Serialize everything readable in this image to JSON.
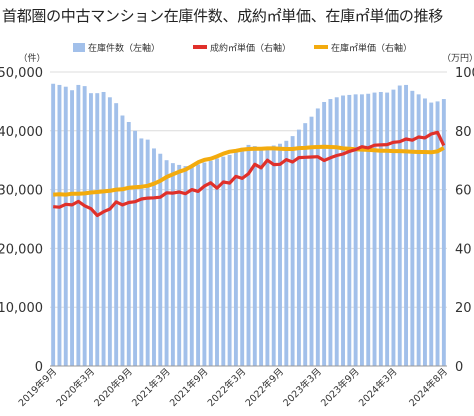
{
  "chart_data": {
    "type": "bar",
    "title": "首都圏の中古マンション在庫件数、成約㎡単価、在庫㎡単価の推移",
    "y_left_unit": "（件）",
    "y_right_unit": "（万円）",
    "y_left_ticks": [
      "0",
      "10,000",
      "20,000",
      "30,000",
      "40,000",
      "50,000"
    ],
    "y_right_ticks": [
      "0",
      "20",
      "40",
      "60",
      "80",
      "100"
    ],
    "ylim_left": [
      0,
      50000
    ],
    "ylim_right": [
      0,
      100
    ],
    "x_tick_labels": [
      "2019年9月",
      "2020年3月",
      "2020年9月",
      "2021年3月",
      "2021年9月",
      "2022年3月",
      "2022年9月",
      "2023年3月",
      "2023年9月",
      "2024年3月",
      "2024年8月"
    ],
    "legend": {
      "position": "top",
      "bar_label": "在庫件数（左軸）",
      "red_label": "成約㎡単価（右軸）",
      "yellow_label": "在庫㎡単価（右軸）"
    },
    "colors": {
      "bar": "#a2c0ea",
      "red": "#e0302a",
      "yellow": "#f3ab0e"
    },
    "grid": true,
    "series": [
      {
        "type": "bar",
        "axis": "left",
        "values": [
          48000,
          47800,
          47500,
          46900,
          47800,
          47600,
          46400,
          46400,
          46600,
          45700,
          44700,
          42600,
          41500,
          40000,
          38700,
          38500,
          37000,
          36100,
          35000,
          34500,
          34200,
          34000,
          34000,
          34300,
          34600,
          34900,
          35300,
          35600,
          35900,
          36500,
          37100,
          37600,
          37400,
          37200,
          37100,
          37500,
          37800,
          38300,
          39100,
          40200,
          41300,
          42400,
          43800,
          44900,
          45400,
          45700,
          46000,
          46100,
          46200,
          46200,
          46300,
          46500,
          46600,
          46500,
          47000,
          47700,
          47800,
          46800,
          46200,
          45500,
          44800,
          45000,
          45400
        ]
      },
      {
        "type": "line",
        "axis": "right",
        "values": [
          54.2,
          54.0,
          55.0,
          54.8,
          56.0,
          54.5,
          53.5,
          51.2,
          52.5,
          53.4,
          55.8,
          54.8,
          55.6,
          55.9,
          56.8,
          57.1,
          57.2,
          57.4,
          58.9,
          58.8,
          59.2,
          58.6,
          60.0,
          59.4,
          61.2,
          62.3,
          60.5,
          62.6,
          62.2,
          64.5,
          63.8,
          65.4,
          68.6,
          67.4,
          70.0,
          68.5,
          68.6,
          70.2,
          69.4,
          70.9,
          71.0,
          71.1,
          71.2,
          69.9,
          70.8,
          71.6,
          72.1,
          73.0,
          73.6,
          74.6,
          74.2,
          75.1,
          75.2,
          75.3,
          76.1,
          76.3,
          77.2,
          76.8,
          77.9,
          77.6,
          78.9,
          79.5,
          75.0
        ]
      },
      {
        "type": "line",
        "axis": "right",
        "values": [
          58.3,
          58.4,
          58.3,
          58.6,
          58.6,
          58.7,
          59.0,
          59.2,
          59.4,
          59.6,
          60.0,
          60.1,
          60.6,
          60.8,
          61.0,
          61.3,
          62.0,
          63.0,
          64.3,
          65.2,
          66.1,
          66.8,
          68.0,
          69.3,
          70.1,
          70.5,
          71.3,
          72.2,
          72.9,
          73.2,
          73.6,
          73.8,
          73.9,
          73.9,
          74.0,
          74.0,
          73.9,
          73.8,
          73.8,
          74.1,
          74.2,
          74.4,
          74.5,
          74.6,
          74.5,
          74.4,
          74.0,
          73.9,
          73.7,
          73.6,
          73.5,
          73.4,
          73.2,
          73.2,
          73.1,
          73.1,
          73.0,
          72.9,
          72.8,
          72.8,
          72.7,
          73.0,
          74.2
        ]
      }
    ]
  }
}
